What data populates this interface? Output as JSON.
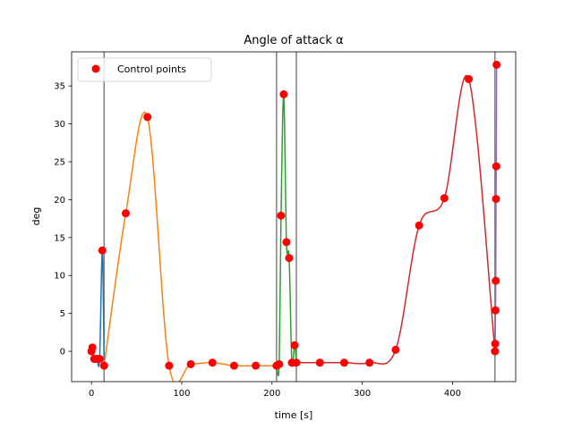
{
  "chart_data": {
    "type": "line",
    "title": "Angle of attack α",
    "xlabel": "time [s]",
    "ylabel": "deg",
    "xlim": [
      -22,
      470
    ],
    "ylim": [
      -4,
      39.5
    ],
    "xticks": [
      0,
      100,
      200,
      300,
      400
    ],
    "yticks": [
      0,
      5,
      10,
      15,
      20,
      25,
      30,
      35
    ],
    "grid": false,
    "legend": {
      "placement": "top-left",
      "entries": [
        "Control points"
      ]
    },
    "vertical_lines": [
      14,
      205,
      227,
      447
    ],
    "segment_colors": [
      "#1f77b4",
      "#ff7f0e",
      "#2ca02c",
      "#d62728",
      "#9467bd"
    ],
    "series": [
      {
        "points": [
          [
            0,
            0
          ],
          [
            1,
            0.5
          ],
          [
            3,
            -1
          ],
          [
            6,
            -1
          ],
          [
            9,
            -1
          ],
          [
            12,
            13.3
          ],
          [
            14,
            -1.9
          ]
        ]
      },
      {
        "points": [
          [
            14,
            -1.9
          ],
          [
            38,
            18.2
          ],
          [
            62,
            30.9
          ],
          [
            86,
            -1.9
          ],
          [
            110,
            -1.7
          ],
          [
            134,
            -1.5
          ],
          [
            158,
            -1.9
          ],
          [
            182,
            -1.9
          ],
          [
            205,
            -1.9
          ]
        ]
      },
      {
        "points": [
          [
            205,
            -1.9
          ],
          [
            208,
            -1.7
          ],
          [
            210,
            17.9
          ],
          [
            213,
            33.9
          ],
          [
            216,
            14.4
          ],
          [
            219,
            12.3
          ],
          [
            222,
            -1.5
          ],
          [
            225,
            0.8
          ],
          [
            227,
            -1.5
          ]
        ]
      },
      {
        "points": [
          [
            227,
            -1.5
          ],
          [
            253,
            -1.5
          ],
          [
            280,
            -1.5
          ],
          [
            308,
            -1.5
          ],
          [
            337,
            0.2
          ],
          [
            363,
            16.6
          ],
          [
            391,
            20.2
          ],
          [
            418,
            35.9
          ],
          [
            447,
            0
          ]
        ]
      },
      {
        "points": [
          [
            447,
            0
          ],
          [
            447.3,
            1
          ],
          [
            447.6,
            5.4
          ],
          [
            447.9,
            9.3
          ],
          [
            448.2,
            20.1
          ],
          [
            448.5,
            24.4
          ],
          [
            448.8,
            37.8
          ]
        ]
      }
    ],
    "control_points": {
      "name": "Control points",
      "color": "#ff0000",
      "x": [
        0,
        1,
        3,
        6,
        9,
        12,
        14,
        38,
        62,
        86,
        110,
        134,
        158,
        182,
        205,
        208,
        210,
        213,
        216,
        219,
        222,
        225,
        227,
        253,
        280,
        308,
        337,
        363,
        391,
        418,
        447,
        447.3,
        447.6,
        447.9,
        448.2,
        448.5,
        448.8
      ],
      "y": [
        0,
        0.5,
        -1,
        -1,
        -1,
        13.3,
        -1.9,
        18.2,
        30.9,
        -1.9,
        -1.7,
        -1.5,
        -1.9,
        -1.9,
        -1.9,
        -1.7,
        17.9,
        33.9,
        14.4,
        12.3,
        -1.5,
        0.8,
        -1.5,
        -1.5,
        -1.5,
        -1.5,
        0.2,
        16.6,
        20.2,
        35.9,
        0,
        1,
        5.4,
        9.3,
        20.1,
        24.4,
        37.8
      ]
    }
  }
}
